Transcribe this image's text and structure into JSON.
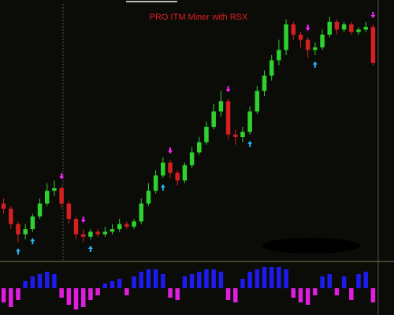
{
  "chart_data": [
    {
      "type": "candlestick",
      "title": "PRO ITM Miner with RSX",
      "open": [
        22,
        20,
        14,
        10,
        12,
        17,
        22,
        27,
        28,
        22,
        16,
        10,
        9,
        11,
        10,
        11,
        12,
        14,
        13,
        15,
        22,
        27,
        33,
        38,
        34,
        31,
        37,
        42,
        46,
        52,
        58,
        62,
        49,
        48,
        50,
        58,
        66,
        72,
        78,
        82,
        92,
        88,
        86,
        82,
        83,
        88,
        93,
        90,
        92,
        89,
        90,
        91
      ],
      "high": [
        24,
        21,
        15,
        14,
        18,
        24,
        30,
        31,
        29,
        23,
        17,
        12,
        12,
        12,
        13,
        14,
        16,
        15,
        16,
        24,
        30,
        35,
        40,
        39,
        35,
        38,
        44,
        48,
        54,
        61,
        66,
        63,
        51,
        52,
        60,
        68,
        74,
        80,
        86,
        94,
        93,
        89,
        87,
        85,
        90,
        95,
        94,
        93,
        93,
        91,
        93,
        92
      ],
      "low": [
        18,
        12,
        7,
        8,
        11,
        16,
        21,
        25,
        20,
        14,
        8,
        7,
        8,
        9,
        9,
        10,
        11,
        12,
        12,
        14,
        21,
        26,
        32,
        32,
        29,
        30,
        36,
        41,
        45,
        51,
        56,
        47,
        45,
        46,
        49,
        57,
        64,
        70,
        76,
        80,
        86,
        83,
        79,
        80,
        82,
        87,
        88,
        89,
        88,
        88,
        89,
        76
      ],
      "close": [
        20,
        14,
        10,
        12,
        17,
        22,
        27,
        28,
        22,
        16,
        10,
        9,
        11,
        10,
        11,
        12,
        14,
        13,
        15,
        22,
        27,
        33,
        38,
        34,
        31,
        37,
        42,
        46,
        52,
        58,
        62,
        49,
        48,
        50,
        58,
        66,
        72,
        78,
        82,
        92,
        88,
        86,
        82,
        83,
        88,
        93,
        90,
        92,
        89,
        90,
        91,
        77
      ],
      "buy_signals": [
        2,
        4,
        12,
        22,
        34,
        43
      ],
      "sell_signals": [
        8,
        11,
        23,
        31,
        42,
        51
      ],
      "up_color": "#2fd12f",
      "down_color": "#d42020",
      "buy_color": "#29b6f6",
      "sell_color": "#ff22ff",
      "ylim": [
        0,
        100
      ]
    },
    {
      "type": "bar",
      "values": [
        -0.6,
        -0.8,
        -0.5,
        0.3,
        0.5,
        0.6,
        0.7,
        0.6,
        -0.4,
        -0.7,
        -0.9,
        -0.8,
        -0.5,
        -0.3,
        0.2,
        0.3,
        0.4,
        -0.3,
        0.5,
        0.7,
        0.8,
        0.8,
        0.6,
        -0.4,
        -0.5,
        0.5,
        0.6,
        0.7,
        0.8,
        0.8,
        0.7,
        -0.5,
        -0.6,
        0.4,
        0.7,
        0.8,
        0.9,
        0.9,
        0.9,
        0.8,
        -0.4,
        -0.6,
        -0.7,
        -0.3,
        0.5,
        0.6,
        -0.3,
        0.5,
        -0.5,
        0.6,
        0.7,
        -0.6
      ],
      "positive_color": "#1c1cf0",
      "negative_color": "#e01ee0",
      "ylim": [
        -1,
        1
      ]
    }
  ]
}
